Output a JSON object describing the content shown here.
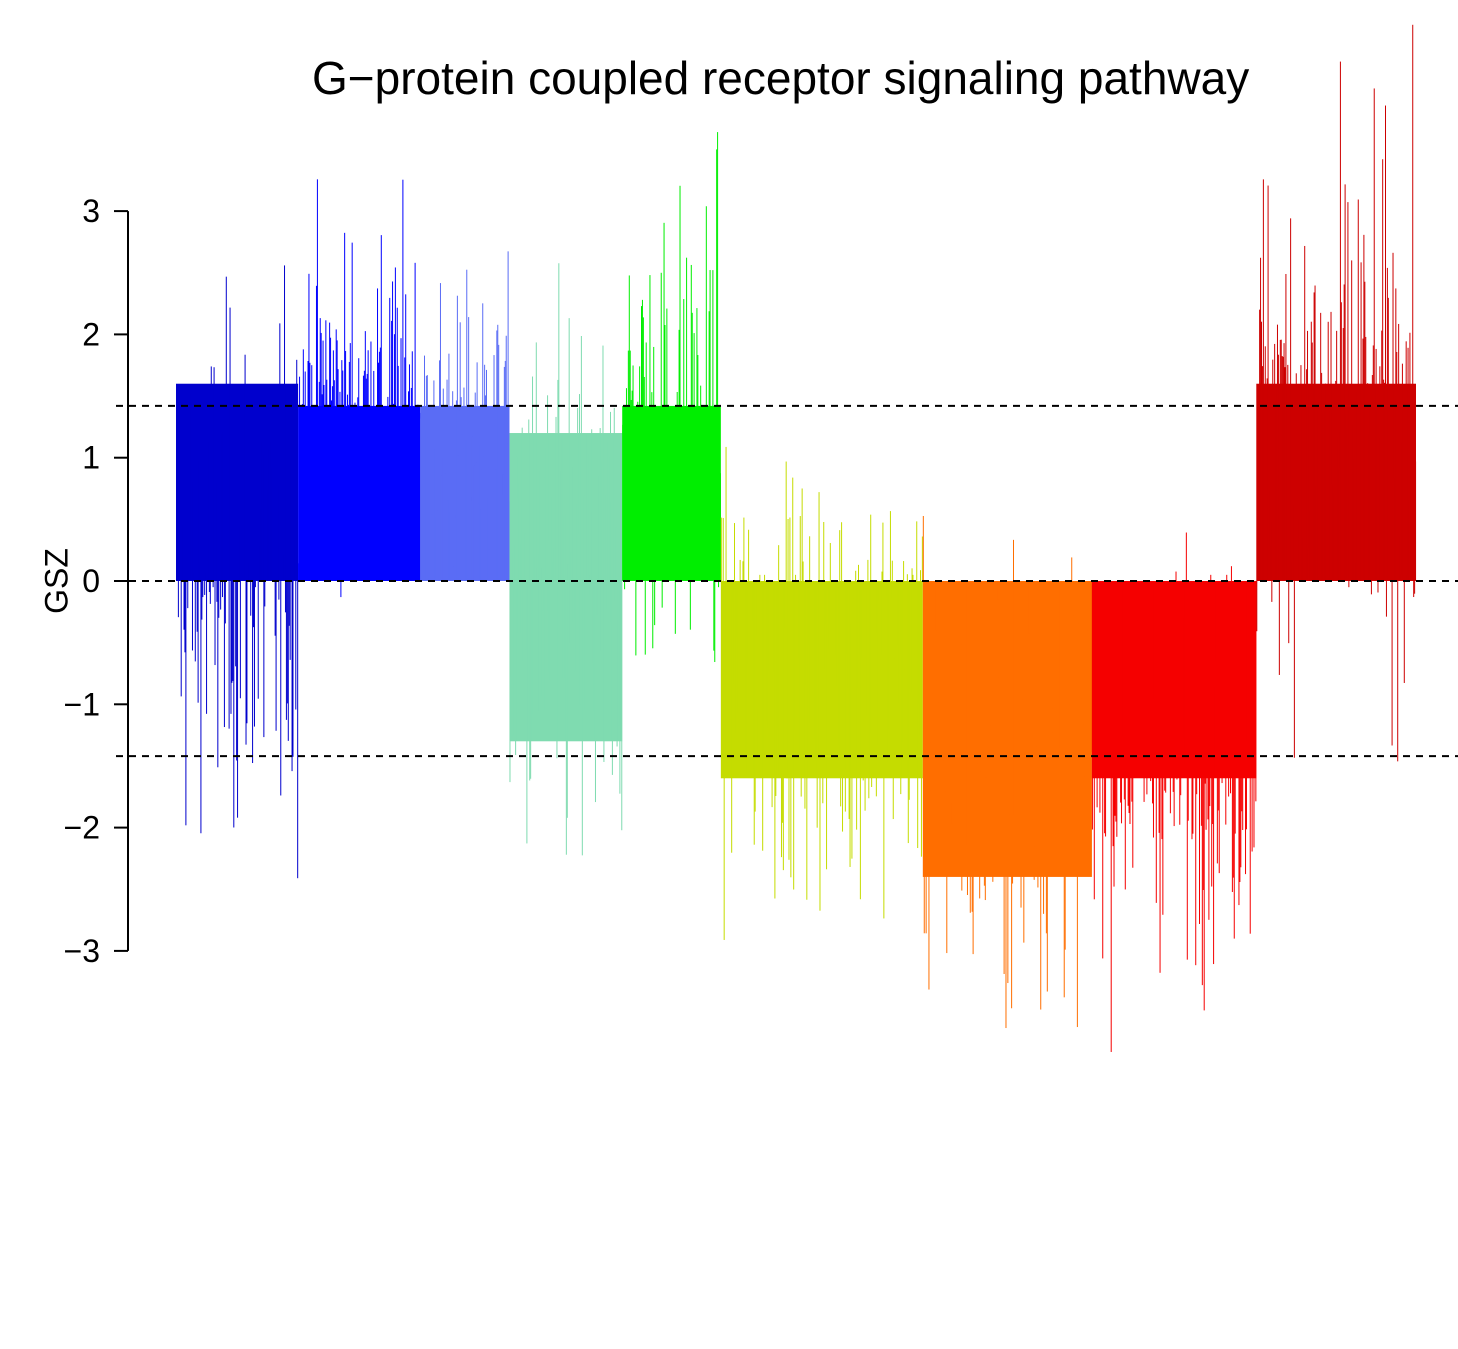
{
  "chart_data": {
    "type": "bar",
    "title": "G−protein coupled receptor signaling pathway",
    "xlabel": "",
    "ylabel": "GSZ",
    "ylim": [
      -3,
      3
    ],
    "yticks": [
      "3",
      "2",
      "1",
      "0",
      "−1",
      "−2",
      "−3"
    ],
    "reference_lines": [
      1.42,
      0,
      -1.42
    ],
    "grid": false,
    "legend": "none",
    "series": [
      {
        "color": "#0000CD",
        "bars": 130,
        "baseline_mean": 0.0,
        "spread": 1.6,
        "fill_top": 1.6,
        "fill_bottom": 0.0
      },
      {
        "color": "#0000FF",
        "bars": 130,
        "baseline_mean": 1.5,
        "spread": 1.0,
        "fill_top": 1.42,
        "fill_bottom": 0.0
      },
      {
        "color": "#5A6CF5",
        "bars": 95,
        "baseline_mean": 1.2,
        "spread": 0.9,
        "fill_top": 1.42,
        "fill_bottom": 0.0
      },
      {
        "color": "#7FDBB0",
        "bars": 120,
        "baseline_mean": -0.2,
        "spread": 1.8,
        "fill_top": 1.2,
        "fill_bottom": -1.3
      },
      {
        "color": "#00EE00",
        "bars": 105,
        "baseline_mean": 1.2,
        "spread": 1.5,
        "fill_top": 1.42,
        "fill_bottom": 0.0
      },
      {
        "color": "#C5DC00",
        "bars": 215,
        "baseline_mean": -0.8,
        "spread": 1.3,
        "fill_top": 0.0,
        "fill_bottom": -1.6
      },
      {
        "color": "#FF6E00",
        "bars": 180,
        "baseline_mean": -1.6,
        "spread": 1.3,
        "fill_top": 0.0,
        "fill_bottom": -2.4
      },
      {
        "color": "#F50000",
        "bars": 175,
        "baseline_mean": -1.4,
        "spread": 1.2,
        "fill_top": 0.0,
        "fill_bottom": -1.6
      },
      {
        "color": "#CD0000",
        "bars": 170,
        "baseline_mean": 1.3,
        "spread": 1.6,
        "fill_top": 1.6,
        "fill_bottom": 0.0
      }
    ]
  }
}
